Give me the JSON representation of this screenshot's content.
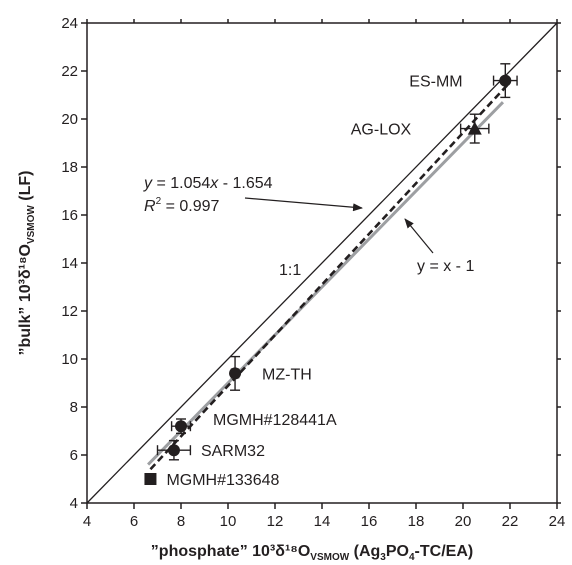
{
  "chart_data": {
    "type": "scatter",
    "xlabel": {
      "prefix": "”phosphate”  10³δ¹⁸O",
      "sub_vsmow": "VSMOW",
      "paren_open": "  (Ag",
      "sub3": "3",
      "po": "PO",
      "sub4": "4",
      "paren_close": "-TC/EA)"
    },
    "ylabel": {
      "prefix": "”bulk”  10³δ¹⁸O",
      "sub_vsmow": "VSMOW",
      "suffix": "  (LF)"
    },
    "xlim": [
      4,
      24
    ],
    "ylim": [
      4,
      24
    ],
    "xticks": [
      "4",
      "6",
      "8",
      "10",
      "12",
      "14",
      "16",
      "18",
      "20",
      "22",
      "24"
    ],
    "yticks": [
      "4",
      "6",
      "8",
      "10",
      "12",
      "14",
      "16",
      "18",
      "20",
      "22",
      "24"
    ],
    "grid": false,
    "points": [
      {
        "label": "ES-MM",
        "x": 21.8,
        "y": 21.6,
        "xerr": 0.5,
        "yerr": 0.7,
        "marker": "circle"
      },
      {
        "label": "AG-LOX",
        "x": 20.5,
        "y": 19.6,
        "xerr": 0.6,
        "yerr": 0.6,
        "marker": "triangle"
      },
      {
        "label": "MZ-TH",
        "x": 10.3,
        "y": 9.4,
        "xerr": 0.15,
        "yerr": 0.7,
        "marker": "circle"
      },
      {
        "label": "MGMH#128441A",
        "x": 8.0,
        "y": 7.2,
        "xerr": 0.4,
        "yerr": 0.3,
        "marker": "circle"
      },
      {
        "label": "SARM32",
        "x": 7.7,
        "y": 6.2,
        "xerr": 0.7,
        "yerr": 0.4,
        "marker": "circle"
      },
      {
        "label": "MGMH#133648",
        "x": 6.7,
        "y": 5.0,
        "xerr": 0,
        "yerr": 0,
        "marker": "square"
      }
    ],
    "lines": [
      {
        "name": "1:1",
        "slope": 1,
        "intercept": 0,
        "x_range": [
          4,
          24
        ],
        "style": "solid",
        "color": "#231f20"
      },
      {
        "name": "y = x - 1",
        "slope": 1,
        "intercept": -1,
        "x_range": [
          6.6,
          21.7
        ],
        "style": "solid",
        "color": "#9d9fa2"
      },
      {
        "name": "fit",
        "slope": 1.054,
        "intercept": -1.654,
        "x_range": [
          6.7,
          21.9
        ],
        "style": "dashed",
        "color": "#231f20"
      }
    ],
    "annotations": {
      "one_to_one": "1:1",
      "offset_line": "y = x - 1",
      "fit_eq": {
        "y": "y",
        "mid": " = 1.054",
        "x": "x",
        "end": " - 1.654"
      },
      "fit_r2": {
        "r": "R",
        "sup": "2",
        "end": " = 0.997"
      }
    }
  }
}
